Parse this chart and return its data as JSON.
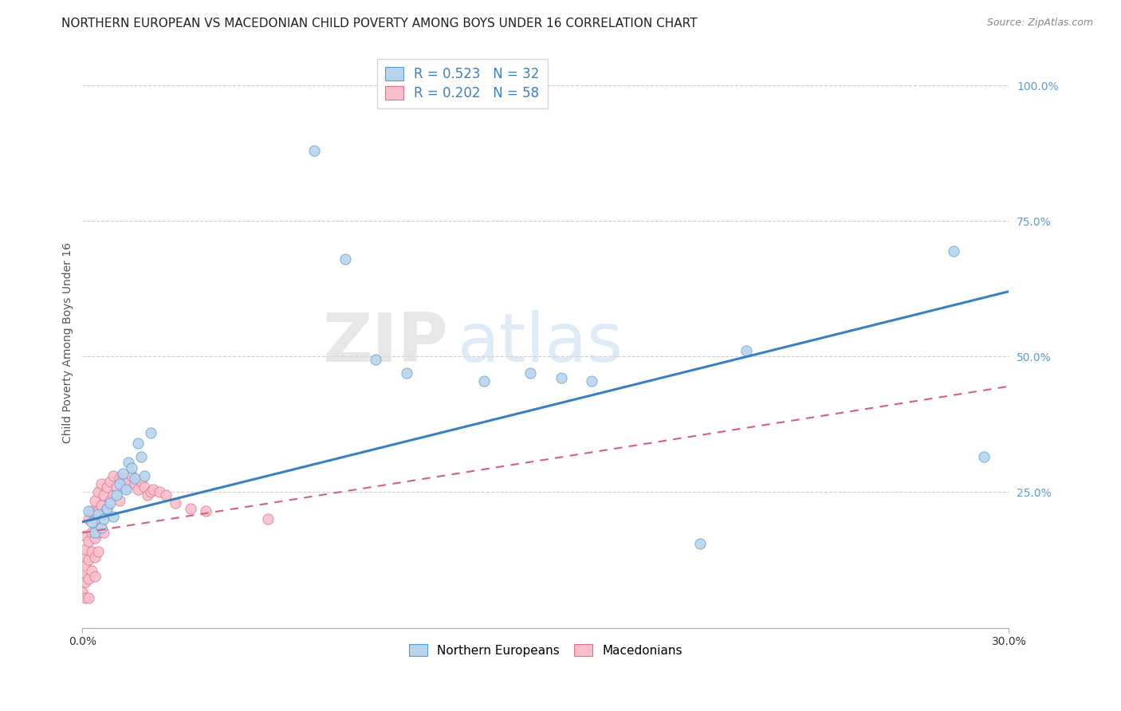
{
  "title": "NORTHERN EUROPEAN VS MACEDONIAN CHILD POVERTY AMONG BOYS UNDER 16 CORRELATION CHART",
  "source": "Source: ZipAtlas.com",
  "ylabel": "Child Poverty Among Boys Under 16",
  "x_range": [
    0.0,
    0.3
  ],
  "y_range": [
    0.0,
    1.05
  ],
  "watermark_zip": "ZIP",
  "watermark_atlas": "atlas",
  "series1_label": "Northern Europeans",
  "series1_face_color": "#b8d4ed",
  "series1_edge_color": "#5b9bd5",
  "series1_line_color": "#3a7fc1",
  "series1_R": 0.523,
  "series1_N": 32,
  "series2_label": "Macedonians",
  "series2_face_color": "#f9c0cb",
  "series2_edge_color": "#e07090",
  "series2_line_color": "#d4607a",
  "series2_R": 0.202,
  "series2_N": 58,
  "ne_x": [
    0.002,
    0.003,
    0.004,
    0.005,
    0.006,
    0.007,
    0.008,
    0.009,
    0.01,
    0.011,
    0.012,
    0.013,
    0.014,
    0.015,
    0.016,
    0.017,
    0.018,
    0.019,
    0.02,
    0.022,
    0.075,
    0.085,
    0.095,
    0.105,
    0.13,
    0.145,
    0.155,
    0.165,
    0.2,
    0.215,
    0.282,
    0.292
  ],
  "ne_y": [
    0.215,
    0.195,
    0.175,
    0.21,
    0.185,
    0.2,
    0.22,
    0.23,
    0.205,
    0.245,
    0.265,
    0.285,
    0.255,
    0.305,
    0.295,
    0.275,
    0.34,
    0.315,
    0.28,
    0.36,
    0.88,
    0.68,
    0.495,
    0.47,
    0.455,
    0.47,
    0.46,
    0.455,
    0.155,
    0.51,
    0.695,
    0.315
  ],
  "mac_x": [
    0.0,
    0.0,
    0.0,
    0.001,
    0.001,
    0.001,
    0.001,
    0.001,
    0.002,
    0.002,
    0.002,
    0.002,
    0.002,
    0.003,
    0.003,
    0.003,
    0.003,
    0.004,
    0.004,
    0.004,
    0.004,
    0.004,
    0.005,
    0.005,
    0.005,
    0.005,
    0.006,
    0.006,
    0.006,
    0.007,
    0.007,
    0.007,
    0.008,
    0.008,
    0.009,
    0.009,
    0.01,
    0.01,
    0.011,
    0.012,
    0.012,
    0.013,
    0.014,
    0.015,
    0.016,
    0.017,
    0.018,
    0.019,
    0.02,
    0.021,
    0.022,
    0.023,
    0.025,
    0.027,
    0.03,
    0.035,
    0.04,
    0.06
  ],
  "mac_y": [
    0.13,
    0.095,
    0.065,
    0.145,
    0.115,
    0.085,
    0.17,
    0.055,
    0.2,
    0.16,
    0.125,
    0.09,
    0.055,
    0.215,
    0.175,
    0.14,
    0.105,
    0.235,
    0.2,
    0.165,
    0.13,
    0.095,
    0.25,
    0.215,
    0.175,
    0.14,
    0.265,
    0.225,
    0.185,
    0.245,
    0.21,
    0.175,
    0.26,
    0.22,
    0.27,
    0.235,
    0.28,
    0.245,
    0.26,
    0.275,
    0.235,
    0.275,
    0.26,
    0.27,
    0.28,
    0.265,
    0.255,
    0.27,
    0.26,
    0.245,
    0.25,
    0.255,
    0.25,
    0.245,
    0.23,
    0.22,
    0.215,
    0.2
  ],
  "ne_line_x0": 0.0,
  "ne_line_y0": 0.195,
  "ne_line_x1": 0.3,
  "ne_line_y1": 0.62,
  "mac_line_x0": 0.0,
  "mac_line_y0": 0.175,
  "mac_line_x1": 0.3,
  "mac_line_y1": 0.445,
  "background_color": "#ffffff",
  "grid_color": "#cccccc",
  "title_fontsize": 11,
  "axis_label_fontsize": 10,
  "tick_fontsize": 10,
  "right_tick_color": "#5b9bd5",
  "legend_edge_color": "#cccccc"
}
